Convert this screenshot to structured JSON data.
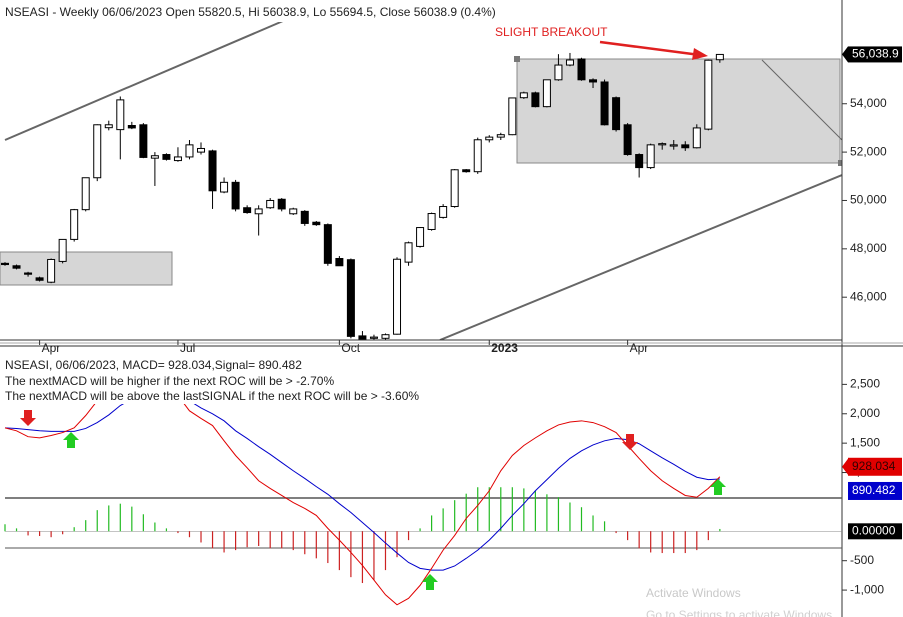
{
  "chart_data": [
    {
      "type": "candlestick",
      "title": "NSEASI - Weekly 06/06/2023 Open 55820.5, Hi 56038.9, Lo 55694.5, Close 56038.9 (0.4%)",
      "annotation": "SLIGHT BREAKOUT",
      "categories": [
        null,
        null,
        null,
        "Apr",
        null,
        null,
        null,
        null,
        null,
        null,
        null,
        null,
        null,
        null,
        null,
        "Jul",
        null,
        null,
        null,
        null,
        null,
        null,
        null,
        null,
        null,
        null,
        null,
        null,
        null,
        "Oct",
        null,
        null,
        null,
        null,
        null,
        null,
        null,
        null,
        null,
        null,
        null,
        null,
        "2023",
        null,
        null,
        null,
        null,
        null,
        null,
        null,
        null,
        null,
        null,
        null,
        "Apr",
        null,
        null,
        null,
        null,
        null,
        null,
        null,
        null
      ],
      "open": [
        47400,
        47300,
        47000,
        46800,
        46620,
        47480,
        48390,
        49620,
        50940,
        53010,
        52930,
        53100,
        53130,
        51750,
        51900,
        51650,
        51800,
        52000,
        52050,
        50350,
        50750,
        49700,
        49450,
        49700,
        50050,
        49450,
        49550,
        49100,
        49000,
        47600,
        47550,
        44400,
        44300,
        44300,
        44470,
        47450,
        48100,
        48800,
        49300,
        49750,
        51270,
        51190,
        52510,
        52620,
        52720,
        54250,
        54450,
        53880,
        54990,
        55600,
        55850,
        54990,
        54900,
        54250,
        53130,
        51900,
        51360,
        52300,
        52250,
        52300,
        52180,
        52950,
        55820.5
      ],
      "high": [
        47450,
        47350,
        47050,
        46850,
        47600,
        48400,
        49650,
        50950,
        53150,
        53300,
        54300,
        53250,
        53200,
        52000,
        51950,
        52200,
        52500,
        52400,
        52100,
        50950,
        50850,
        49800,
        49800,
        50100,
        50100,
        49700,
        49600,
        49150,
        49050,
        47700,
        47600,
        44600,
        44450,
        44500,
        47650,
        48300,
        48900,
        49500,
        49850,
        51300,
        51300,
        52600,
        52700,
        52800,
        54250,
        54500,
        54500,
        55000,
        56050,
        56100,
        55900,
        55050,
        55000,
        54300,
        53200,
        51950,
        52350,
        52400,
        52500,
        52450,
        53150,
        55820,
        56038.9
      ],
      "low": [
        47300,
        47150,
        46850,
        46650,
        46580,
        47400,
        48300,
        49550,
        50800,
        52900,
        51700,
        52950,
        51750,
        50600,
        51650,
        51600,
        51700,
        51900,
        49650,
        50300,
        49550,
        49450,
        48550,
        49650,
        49550,
        49400,
        48950,
        48950,
        47300,
        47300,
        44300,
        44250,
        44250,
        44250,
        44450,
        47300,
        48050,
        48750,
        49250,
        49700,
        51150,
        51100,
        52400,
        52500,
        52700,
        54200,
        53850,
        53850,
        54950,
        55550,
        54950,
        54650,
        53100,
        52850,
        51850,
        50950,
        51300,
        52100,
        52100,
        52050,
        52150,
        52900,
        55694.5
      ],
      "close": [
        47350,
        47200,
        46950,
        46700,
        47560,
        48390,
        49620,
        50940,
        53130,
        53130,
        54160,
        53000,
        51780,
        51850,
        51700,
        51800,
        52300,
        52150,
        50400,
        50750,
        49650,
        49500,
        49650,
        50000,
        49650,
        49650,
        49050,
        49000,
        47400,
        47300,
        44380,
        44270,
        44350,
        44450,
        47570,
        48250,
        48880,
        49460,
        49750,
        51270,
        51190,
        52510,
        52620,
        52720,
        54240,
        54450,
        53880,
        54990,
        55600,
        55810,
        54990,
        54900,
        53130,
        52930,
        51900,
        51360,
        52300,
        52350,
        52300,
        52180,
        53000,
        55800,
        56038.9
      ],
      "last_close_label": "56,038.9",
      "up_color": "#ffffff",
      "down_color": "#000000",
      "ylim": [
        44230,
        58290
      ],
      "yticks": [
        {
          "value": 46000,
          "label": "46,000"
        },
        {
          "value": 48000,
          "label": "48,000"
        },
        {
          "value": 50000,
          "label": "50,000"
        },
        {
          "value": 52000,
          "label": "52,000"
        },
        {
          "value": 54000,
          "label": "54,000"
        }
      ]
    },
    {
      "type": "macd",
      "texts": [
        "NSEASI, 06/06/2023, MACD= 928.034,Signal= 890.482",
        "The nextMACD will be higher if the next ROC will be > -2.70%",
        "The nextMACD will be above the lastSIGNAL if the next ROC will be > -3.60%"
      ],
      "macd": {
        "color": "#e00000",
        "last_label": "928.034",
        "values": [
          1760,
          1710,
          1610,
          1590,
          1630,
          1680,
          1760,
          1970,
          2220,
          2470,
          2640,
          2760,
          2800,
          2730,
          2560,
          2310,
          2050,
          1920,
          1800,
          1540,
          1290,
          1080,
          860,
          730,
          610,
          490,
          390,
          270,
          50,
          -150,
          -360,
          -580,
          -830,
          -1080,
          -1250,
          -1140,
          -920,
          -630,
          -320,
          -70,
          220,
          440,
          690,
          1030,
          1290,
          1460,
          1590,
          1710,
          1810,
          1860,
          1880,
          1850,
          1780,
          1680,
          1460,
          1240,
          1030,
          860,
          730,
          610,
          580,
          730,
          928.034
        ]
      },
      "signal": {
        "color": "#0000cc",
        "last_label": "890.482",
        "values": [
          1760,
          1750,
          1730,
          1710,
          1700,
          1700,
          1700,
          1750,
          1850,
          1980,
          2140,
          2250,
          2340,
          2370,
          2360,
          2310,
          2220,
          2100,
          2000,
          1880,
          1710,
          1580,
          1440,
          1310,
          1170,
          1030,
          900,
          760,
          630,
          470,
          320,
          150,
          -20,
          -200,
          -370,
          -530,
          -630,
          -660,
          -660,
          -590,
          -460,
          -320,
          -150,
          50,
          270,
          470,
          690,
          880,
          1070,
          1240,
          1370,
          1470,
          1540,
          1580,
          1560,
          1490,
          1370,
          1250,
          1140,
          1020,
          920,
          880,
          890.482
        ]
      },
      "histogram": {
        "pos_color": "#22bb22",
        "neg_color": "#cc2222",
        "values": [
          120,
          50,
          -70,
          -80,
          -100,
          -50,
          70,
          190,
          360,
          440,
          470,
          420,
          290,
          150,
          50,
          -30,
          -100,
          -190,
          -290,
          -360,
          -320,
          -270,
          -250,
          -290,
          -290,
          -320,
          -390,
          -460,
          -540,
          -660,
          -780,
          -880,
          -830,
          -660,
          -440,
          -150,
          50,
          270,
          390,
          530,
          640,
          750,
          750,
          750,
          750,
          730,
          690,
          630,
          580,
          490,
          410,
          270,
          170,
          -30,
          -150,
          -290,
          -360,
          -370,
          -370,
          -370,
          -320,
          -150,
          40
        ]
      },
      "zero_label": {
        "value": 0,
        "label": "0.00000"
      },
      "ylim": [
        -1458,
        3153
      ],
      "yticks": [
        {
          "value": -1000,
          "label": "-1,000"
        },
        -500,
        {
          "value": 1000,
          "label": "1,000"
        },
        {
          "value": 1500,
          "label": "1,500"
        },
        {
          "value": 2000,
          "label": "2,000"
        },
        {
          "value": 2500,
          "label": "2,500"
        }
      ]
    }
  ],
  "watermark": [
    "Activate Windows",
    "Go to Settings to activate Windows."
  ]
}
